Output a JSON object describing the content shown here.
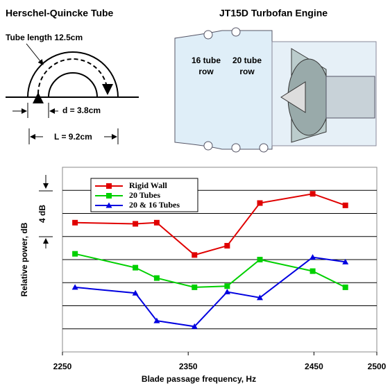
{
  "left_diagram": {
    "title": "Herschel-Quincke Tube",
    "tube_length": "Tube length 12.5cm",
    "d": "d = 3.8cm",
    "L": "L = 9.2cm"
  },
  "right_diagram": {
    "title": "JT15D Turbofan  Engine",
    "row_16": [
      "16 tube",
      "row"
    ],
    "row_20": [
      "20 tube",
      "row"
    ]
  },
  "chart_data": {
    "type": "line",
    "x_label": "Blade passage frequency, Hz",
    "y_label": "Relative power, dB",
    "scale_annotation": "4 dB",
    "xlim": [
      2250,
      2500
    ],
    "xticks": [
      2250,
      2350,
      2450,
      2500
    ],
    "ylim": [
      0,
      16
    ],
    "grid": true,
    "series": [
      {
        "name": "Rigid Wall",
        "color": "#e00000",
        "marker": "square",
        "x": [
          2260,
          2308,
          2325,
          2355,
          2381,
          2407,
          2449,
          2475
        ],
        "values": [
          11.2,
          11.1,
          11.2,
          8.4,
          9.2,
          12.9,
          13.7,
          12.7
        ]
      },
      {
        "name": "20 Tubes",
        "color": "#00d000",
        "marker": "square",
        "x": [
          2260,
          2308,
          2325,
          2355,
          2381,
          2407,
          2449,
          2475
        ],
        "values": [
          8.5,
          7.3,
          6.4,
          5.6,
          5.7,
          8.0,
          7.0,
          5.6
        ]
      },
      {
        "name": "20 & 16 Tubes",
        "color": "#0000e0",
        "marker": "triangle",
        "x": [
          2260,
          2308,
          2325,
          2355,
          2381,
          2407,
          2449,
          2475
        ],
        "values": [
          5.6,
          5.1,
          2.7,
          2.2,
          5.2,
          4.7,
          8.2,
          7.8
        ]
      }
    ]
  }
}
